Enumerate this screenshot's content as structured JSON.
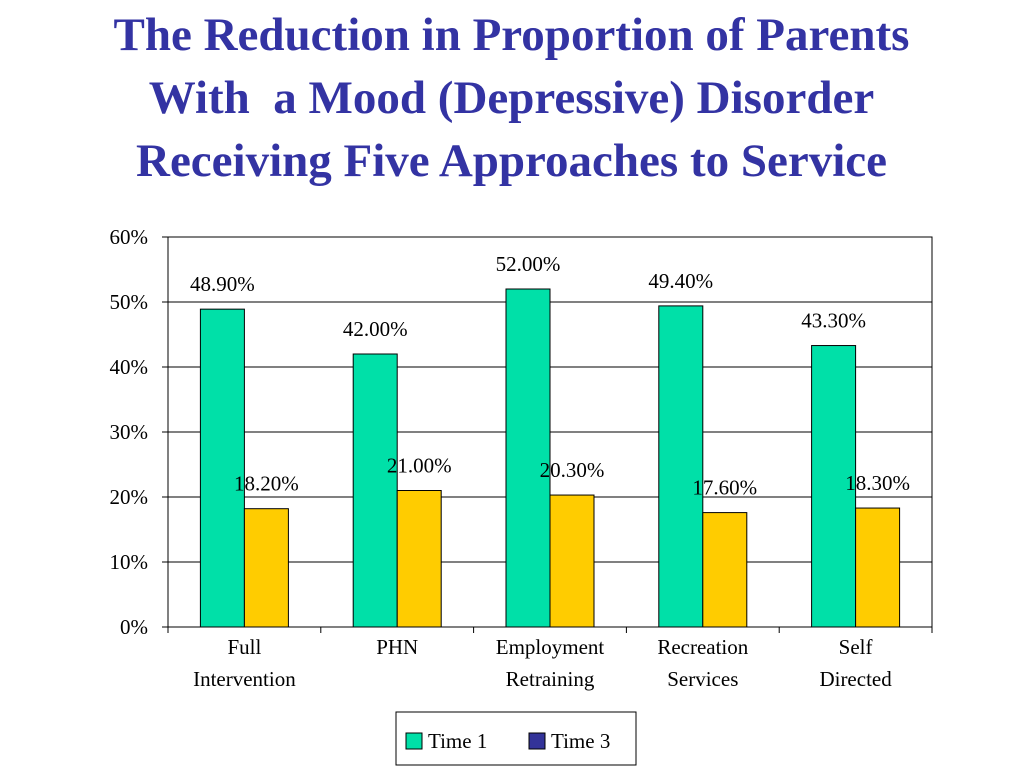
{
  "title": {
    "line1": "The Reduction in Proportion of Parents",
    "line2": "With  a Mood (Depressive) Disorder",
    "line3": "Receiving Five Approaches to Service"
  },
  "colors": {
    "title": "#3333a3",
    "series_time1": "#00e0a8",
    "series_time3_bar": "#ffcc00",
    "series_time3_legend": "#333399"
  },
  "chart_data": {
    "type": "bar",
    "categories": [
      [
        "Full",
        "Intervention"
      ],
      [
        "PHN"
      ],
      [
        "Employment",
        "Retraining"
      ],
      [
        "Recreation",
        "Services"
      ],
      [
        "Self",
        "Directed"
      ]
    ],
    "series": [
      {
        "name": "Time 1",
        "values": [
          48.9,
          42.0,
          52.0,
          49.4,
          43.3
        ],
        "labels": [
          "48.90%",
          "42.00%",
          "52.00%",
          "49.40%",
          "43.30%"
        ]
      },
      {
        "name": "Time 3",
        "values": [
          18.2,
          21.0,
          20.3,
          17.6,
          18.3
        ],
        "labels": [
          "18.20%",
          "21.00%",
          "20.30%",
          "17.60%",
          "18.30%"
        ]
      }
    ],
    "yticks": [
      "0%",
      "10%",
      "20%",
      "30%",
      "40%",
      "50%",
      "60%"
    ],
    "ylim": [
      0,
      60
    ],
    "grid": true,
    "legend": "bottom",
    "xlabel": "",
    "ylabel": ""
  }
}
